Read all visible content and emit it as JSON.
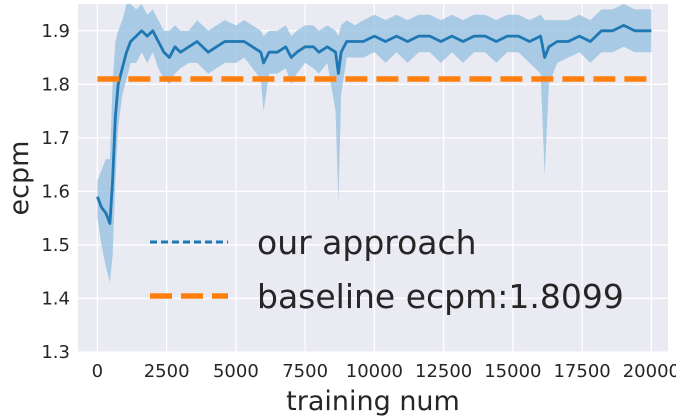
{
  "chart_data": {
    "type": "line",
    "xlabel": "training num",
    "ylabel": "ecpm",
    "xlim": [
      -700,
      20600
    ],
    "ylim": [
      1.3,
      1.95
    ],
    "x_ticks": [
      0,
      2500,
      5000,
      7500,
      10000,
      12500,
      15000,
      17500,
      20000
    ],
    "y_ticks": [
      1.3,
      1.4,
      1.5,
      1.6,
      1.7,
      1.8,
      1.9
    ],
    "grid": true,
    "legend_position": "center",
    "colors": {
      "plot_background": "#eaeaf2",
      "grid": "#ffffff",
      "our_approach": "#1f77b4",
      "band": "#93bfe0",
      "baseline": "#ff7f0e"
    },
    "series": [
      {
        "name": "our approach",
        "style": "dashed-legend, solid with shaded band",
        "x": [
          0,
          150,
          300,
          450,
          550,
          650,
          750,
          900,
          1050,
          1200,
          1400,
          1600,
          1800,
          2000,
          2200,
          2400,
          2600,
          2800,
          3000,
          3300,
          3600,
          4000,
          4300,
          4600,
          5000,
          5300,
          5600,
          5900,
          6000,
          6200,
          6500,
          6800,
          7000,
          7200,
          7500,
          7800,
          8000,
          8300,
          8600,
          8700,
          8800,
          9000,
          9300,
          9600,
          10000,
          10400,
          10800,
          11200,
          11600,
          12000,
          12400,
          12800,
          13200,
          13600,
          14000,
          14400,
          14800,
          15200,
          15600,
          16000,
          16150,
          16300,
          16600,
          17000,
          17400,
          17800,
          18200,
          18600,
          19000,
          19400,
          19800,
          20000
        ],
        "y": [
          1.59,
          1.57,
          1.56,
          1.54,
          1.62,
          1.74,
          1.8,
          1.83,
          1.86,
          1.88,
          1.89,
          1.9,
          1.89,
          1.9,
          1.88,
          1.86,
          1.85,
          1.87,
          1.86,
          1.87,
          1.88,
          1.86,
          1.87,
          1.88,
          1.88,
          1.88,
          1.87,
          1.86,
          1.84,
          1.86,
          1.86,
          1.87,
          1.85,
          1.86,
          1.87,
          1.87,
          1.86,
          1.87,
          1.86,
          1.82,
          1.86,
          1.88,
          1.88,
          1.88,
          1.89,
          1.88,
          1.89,
          1.88,
          1.89,
          1.89,
          1.88,
          1.89,
          1.88,
          1.89,
          1.89,
          1.88,
          1.89,
          1.89,
          1.88,
          1.89,
          1.85,
          1.87,
          1.88,
          1.88,
          1.89,
          1.88,
          1.9,
          1.9,
          1.91,
          1.9,
          1.9,
          1.9
        ],
        "y_low": [
          1.55,
          1.5,
          1.46,
          1.43,
          1.48,
          1.62,
          1.72,
          1.78,
          1.81,
          1.84,
          1.84,
          1.86,
          1.84,
          1.86,
          1.83,
          1.81,
          1.8,
          1.82,
          1.83,
          1.84,
          1.84,
          1.82,
          1.83,
          1.84,
          1.84,
          1.85,
          1.83,
          1.81,
          1.75,
          1.82,
          1.82,
          1.83,
          1.8,
          1.82,
          1.84,
          1.83,
          1.82,
          1.84,
          1.75,
          1.58,
          1.78,
          1.85,
          1.85,
          1.85,
          1.86,
          1.84,
          1.86,
          1.84,
          1.86,
          1.86,
          1.84,
          1.86,
          1.84,
          1.86,
          1.86,
          1.84,
          1.86,
          1.86,
          1.84,
          1.82,
          1.63,
          1.8,
          1.84,
          1.85,
          1.86,
          1.84,
          1.86,
          1.86,
          1.87,
          1.86,
          1.86,
          1.86
        ],
        "y_high": [
          1.62,
          1.64,
          1.66,
          1.66,
          1.8,
          1.88,
          1.9,
          1.92,
          1.95,
          1.95,
          1.94,
          1.95,
          1.93,
          1.94,
          1.92,
          1.9,
          1.9,
          1.91,
          1.9,
          1.9,
          1.92,
          1.9,
          1.91,
          1.92,
          1.91,
          1.92,
          1.91,
          1.9,
          1.89,
          1.9,
          1.9,
          1.91,
          1.89,
          1.9,
          1.91,
          1.91,
          1.9,
          1.91,
          1.9,
          1.89,
          1.91,
          1.92,
          1.91,
          1.92,
          1.93,
          1.92,
          1.93,
          1.92,
          1.93,
          1.93,
          1.92,
          1.93,
          1.92,
          1.93,
          1.93,
          1.92,
          1.93,
          1.93,
          1.92,
          1.93,
          1.92,
          1.92,
          1.92,
          1.92,
          1.93,
          1.92,
          1.94,
          1.94,
          1.95,
          1.94,
          1.94,
          1.94
        ]
      },
      {
        "name": "baseline ecpm:1.8099",
        "style": "dashed",
        "x": [
          0,
          20000
        ],
        "y": [
          1.8099,
          1.8099
        ]
      }
    ]
  }
}
